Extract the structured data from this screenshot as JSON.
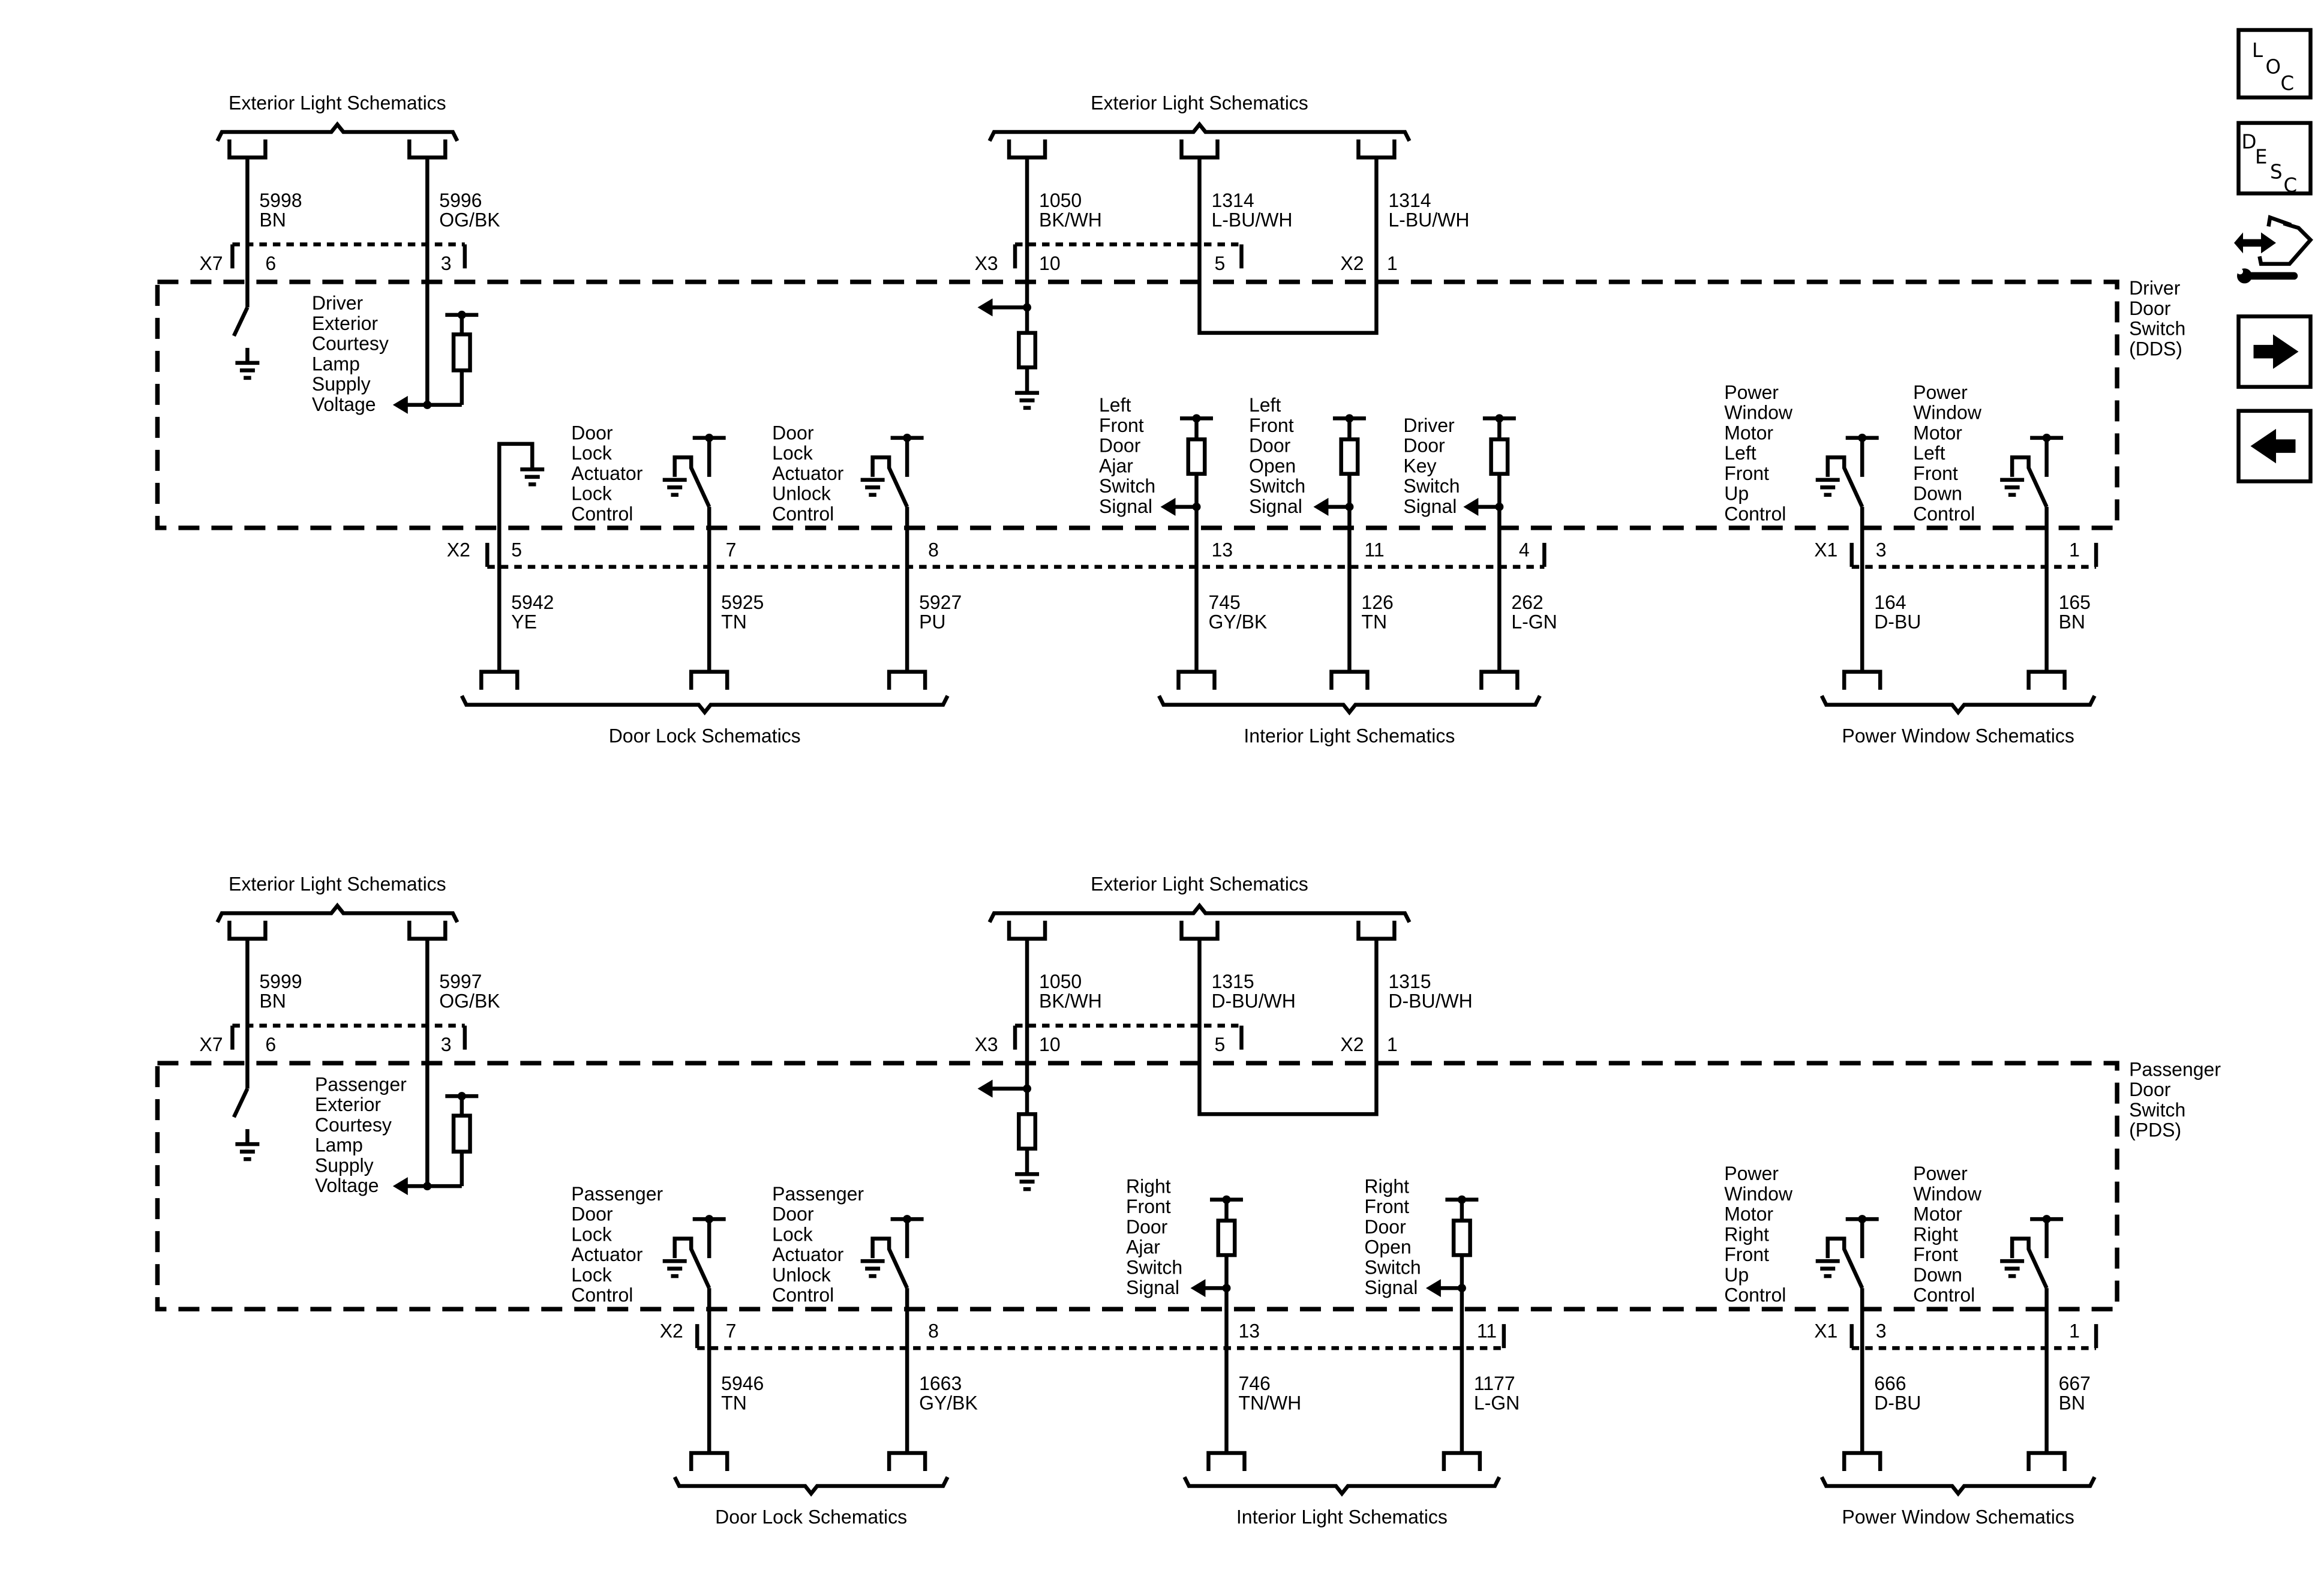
{
  "nav_icons": [
    {
      "name": "location-button",
      "letters": [
        "L",
        "O",
        "C"
      ]
    },
    {
      "name": "description-button",
      "letters": [
        "D",
        "E",
        "S",
        "C"
      ]
    },
    {
      "name": "diagnostic-repair-icon"
    },
    {
      "name": "next-page-arrow-icon"
    },
    {
      "name": "previous-page-arrow-icon"
    }
  ],
  "sections": [
    {
      "top_groups": [
        {
          "label": "Exterior Light Schematics",
          "wires": [
            {
              "circuit": "5998",
              "color": "BN"
            },
            {
              "circuit": "5996",
              "color": "OG/BK"
            }
          ]
        },
        {
          "label": "Exterior Light Schematics",
          "wires": [
            {
              "circuit": "1050",
              "color": "BK/WH"
            },
            {
              "circuit": "1314",
              "color": "L-BU/WH"
            },
            {
              "circuit": "1314",
              "color": "L-BU/WH"
            }
          ]
        }
      ],
      "top_connectors": [
        {
          "name": "X7",
          "pins": [
            "6",
            "3"
          ]
        },
        {
          "name": "X3",
          "pins": [
            "10",
            "5"
          ]
        },
        {
          "name": "X2",
          "pins": [
            "1"
          ]
        }
      ],
      "module": {
        "name_lines": [
          "Driver",
          "Door",
          "Switch",
          "(DDS)"
        ]
      },
      "internal_labels": [
        [
          "Driver",
          "Exterior",
          "Courtesy",
          "Lamp",
          "Supply",
          "Voltage"
        ],
        [
          "Door",
          "Lock",
          "Actuator",
          "Lock",
          "Control"
        ],
        [
          "Door",
          "Lock",
          "Actuator",
          "Unlock",
          "Control"
        ],
        [
          "Left",
          "Front",
          "Door",
          "Ajar",
          "Switch",
          "Signal"
        ],
        [
          "Left",
          "Front",
          "Door",
          "Open",
          "Switch",
          "Signal"
        ],
        [
          "Driver",
          "Door",
          "Key",
          "Switch",
          "Signal"
        ],
        [
          "Power",
          "Window",
          "Motor",
          "Left",
          "Front",
          "Up",
          "Control"
        ],
        [
          "Power",
          "Window",
          "Motor",
          "Left",
          "Front",
          "Down",
          "Control"
        ]
      ],
      "bottom_connectors": [
        {
          "name": "X2",
          "pins": [
            "5",
            "7",
            "8",
            "13",
            "11",
            "4"
          ]
        },
        {
          "name": "X1",
          "pins": [
            "3",
            "1"
          ]
        }
      ],
      "bottom_groups": [
        {
          "label": "Door Lock Schematics",
          "wires": [
            {
              "circuit": "5942",
              "color": "YE"
            },
            {
              "circuit": "5925",
              "color": "TN"
            },
            {
              "circuit": "5927",
              "color": "PU"
            }
          ]
        },
        {
          "label": "Interior Light Schematics",
          "wires": [
            {
              "circuit": "745",
              "color": "GY/BK"
            },
            {
              "circuit": "126",
              "color": "TN"
            },
            {
              "circuit": "262",
              "color": "L-GN"
            }
          ]
        },
        {
          "label": "Power Window Schematics",
          "wires": [
            {
              "circuit": "164",
              "color": "D-BU"
            },
            {
              "circuit": "165",
              "color": "BN"
            }
          ]
        }
      ]
    },
    {
      "top_groups": [
        {
          "label": "Exterior Light Schematics",
          "wires": [
            {
              "circuit": "5999",
              "color": "BN"
            },
            {
              "circuit": "5997",
              "color": "OG/BK"
            }
          ]
        },
        {
          "label": "Exterior Light Schematics",
          "wires": [
            {
              "circuit": "1050",
              "color": "BK/WH"
            },
            {
              "circuit": "1315",
              "color": "D-BU/WH"
            },
            {
              "circuit": "1315",
              "color": "D-BU/WH"
            }
          ]
        }
      ],
      "top_connectors": [
        {
          "name": "X7",
          "pins": [
            "6",
            "3"
          ]
        },
        {
          "name": "X3",
          "pins": [
            "10",
            "5"
          ]
        },
        {
          "name": "X2",
          "pins": [
            "1"
          ]
        }
      ],
      "module": {
        "name_lines": [
          "Passenger",
          "Door",
          "Switch",
          "(PDS)"
        ]
      },
      "internal_labels": [
        [
          "Passenger",
          "Exterior",
          "Courtesy",
          "Lamp",
          "Supply",
          "Voltage"
        ],
        [
          "Passenger",
          "Door",
          "Lock",
          "Actuator",
          "Lock",
          "Control"
        ],
        [
          "Passenger",
          "Door",
          "Lock",
          "Actuator",
          "Unlock",
          "Control"
        ],
        [
          "Right",
          "Front",
          "Door",
          "Ajar",
          "Switch",
          "Signal"
        ],
        [
          "Right",
          "Front",
          "Door",
          "Open",
          "Switch",
          "Signal"
        ],
        [
          "Power",
          "Window",
          "Motor",
          "Right",
          "Front",
          "Up",
          "Control"
        ],
        [
          "Power",
          "Window",
          "Motor",
          "Right",
          "Front",
          "Down",
          "Control"
        ]
      ],
      "bottom_connectors": [
        {
          "name": "X2",
          "pins": [
            "7",
            "8",
            "13",
            "11"
          ]
        },
        {
          "name": "X1",
          "pins": [
            "3",
            "1"
          ]
        }
      ],
      "bottom_groups": [
        {
          "label": "Door Lock Schematics",
          "wires": [
            {
              "circuit": "5946",
              "color": "TN"
            },
            {
              "circuit": "1663",
              "color": "GY/BK"
            }
          ]
        },
        {
          "label": "Interior Light Schematics",
          "wires": [
            {
              "circuit": "746",
              "color": "TN/WH"
            },
            {
              "circuit": "1177",
              "color": "L-GN"
            }
          ]
        },
        {
          "label": "Power Window Schematics",
          "wires": [
            {
              "circuit": "666",
              "color": "D-BU"
            },
            {
              "circuit": "667",
              "color": "BN"
            }
          ]
        }
      ]
    }
  ]
}
